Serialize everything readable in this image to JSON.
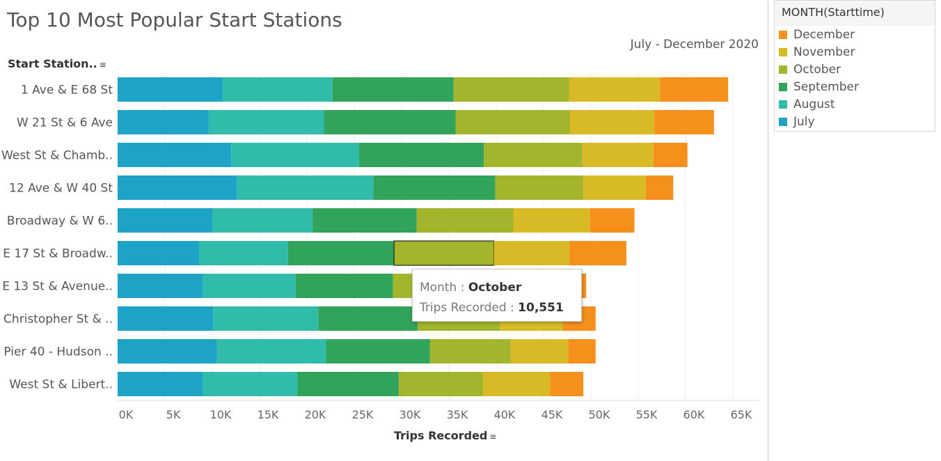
{
  "title": "Top 10 Most Popular Start Stations",
  "subtitle": "July - December 2020",
  "row_header": "Start Station..",
  "x_axis_title": "Trips Recorded",
  "legend": {
    "title": "MONTH(Starttime)",
    "items": [
      {
        "label": "December",
        "color": "#f5901c"
      },
      {
        "label": "November",
        "color": "#d7ba26"
      },
      {
        "label": "October",
        "color": "#a3b52c"
      },
      {
        "label": "September",
        "color": "#32a35a"
      },
      {
        "label": "August",
        "color": "#31bbab"
      },
      {
        "label": "July",
        "color": "#1ea2c6"
      }
    ]
  },
  "tooltip": {
    "month_label": "Month : ",
    "month_value": "October",
    "trips_label": "Trips Recorded : ",
    "trips_value": "10,551"
  },
  "chart_data": {
    "type": "bar",
    "orientation": "horizontal",
    "stacked": true,
    "title": "Top 10 Most Popular Start Stations",
    "subtitle": "July - December 2020",
    "xlabel": "Trips Recorded",
    "ylabel": "Start Station..",
    "xlim": [
      0,
      67000
    ],
    "x_ticks": [
      "0K",
      "5K",
      "10K",
      "15K",
      "20K",
      "25K",
      "30K",
      "35K",
      "40K",
      "45K",
      "50K",
      "55K",
      "60K",
      "65K"
    ],
    "grid": true,
    "legend_position": "right",
    "highlighted": {
      "category": "E 17 St & Broadw..",
      "series": "October"
    },
    "categories": [
      "1 Ave & E 68 St",
      "W 21 St & 6 Ave",
      "West St & Chamb..",
      "12 Ave & W 40 St",
      "Broadway & W 6..",
      "E 17 St & Broadw..",
      "E 13 St & Avenue..",
      "Christopher St & ..",
      "Pier 40 - Hudson ..",
      "West St & Libert.."
    ],
    "series": [
      {
        "name": "July",
        "color": "#1ea2c6",
        "values": [
          11100,
          9600,
          12000,
          12600,
          10000,
          8600,
          9000,
          10100,
          10500,
          9000
        ]
      },
      {
        "name": "August",
        "color": "#31bbab",
        "values": [
          11600,
          12200,
          13500,
          14400,
          10600,
          9400,
          9800,
          11100,
          11500,
          10000
        ]
      },
      {
        "name": "September",
        "color": "#32a35a",
        "values": [
          12800,
          13900,
          13200,
          12900,
          11000,
          11200,
          10300,
          10500,
          11000,
          10700
        ]
      },
      {
        "name": "October",
        "color": "#a3b52c",
        "values": [
          12200,
          12100,
          10400,
          9300,
          10200,
          10551,
          10200,
          8700,
          8500,
          8900
        ]
      },
      {
        "name": "November",
        "color": "#d7ba26",
        "values": [
          9600,
          8900,
          7500,
          6600,
          8100,
          8000,
          7400,
          6600,
          6100,
          7100
        ]
      },
      {
        "name": "December",
        "color": "#f5901c",
        "values": [
          7200,
          6300,
          3600,
          2900,
          4700,
          6000,
          2800,
          3500,
          2900,
          3500
        ]
      }
    ]
  }
}
